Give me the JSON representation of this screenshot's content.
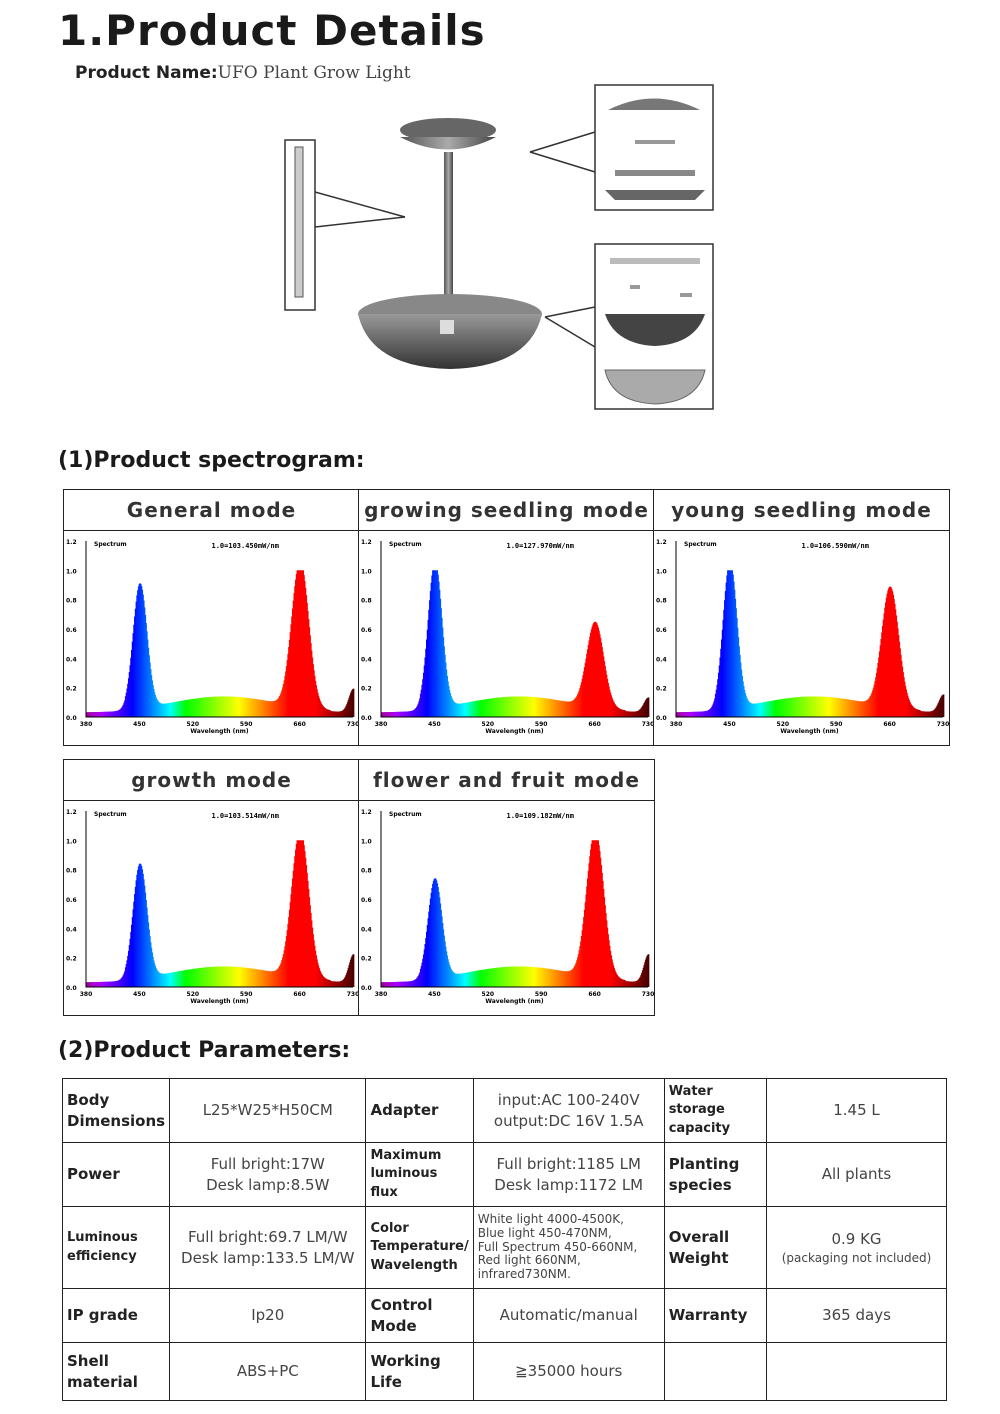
{
  "header": {
    "title": "1.Product Details",
    "product_name_label": "Product Name:",
    "product_name_value": "UFO  Plant Grow Light"
  },
  "spectrogram": {
    "heading": "(1)Product spectrogram:",
    "panels": [
      {
        "title": "General mode",
        "peak_label": "1.0=103.450mW/nm",
        "blue": 0.85,
        "red": 1.0,
        "ir": 0.16
      },
      {
        "title": "growing seedling mode",
        "peak_label": "1.0=127.970mW/nm",
        "blue": 1.0,
        "red": 0.58,
        "ir": 0.1
      },
      {
        "title": "young seedling mode",
        "peak_label": "1.0=106.590mW/nm",
        "blue": 1.0,
        "red": 0.82,
        "ir": 0.12
      },
      {
        "title": "growth mode",
        "peak_label": "1.0=103.514mW/nm",
        "blue": 0.78,
        "red": 1.0,
        "ir": 0.19
      },
      {
        "title": "flower and fruit mode",
        "peak_label": "1.0=109.182mW/nm",
        "blue": 0.68,
        "red": 1.0,
        "ir": 0.19
      }
    ],
    "axis": {
      "y_ticks": [
        "1.2",
        "1.0",
        "0.8",
        "0.6",
        "0.4",
        "0.2",
        "0.0"
      ],
      "x_ticks": [
        "380",
        "450",
        "520",
        "590",
        "660",
        "730"
      ],
      "xlabel": "Wavelength (nm)",
      "ylabel": "Spectrum"
    }
  },
  "parameters": {
    "heading": "(2)Product Parameters:",
    "rows": [
      [
        {
          "l": "Body Dimensions",
          "v": [
            "L25*W25*H50CM"
          ]
        },
        {
          "l": "Adapter",
          "v": [
            "input:AC 100-240V",
            "output:DC 16V 1.5A"
          ]
        },
        {
          "l": "Water storage capacity",
          "v": [
            "1.45 L"
          ]
        }
      ],
      [
        {
          "l": "Power",
          "v": [
            "Full bright:17W",
            "Desk lamp:8.5W"
          ]
        },
        {
          "l": "Maximum luminous flux",
          "v": [
            "Full bright:1185 LM",
            "Desk lamp:1172 LM"
          ]
        },
        {
          "l": "Planting species",
          "v": [
            "All plants"
          ]
        }
      ],
      [
        {
          "l": "Luminous efficiency",
          "v": [
            "Full bright:69.7 LM/W",
            "Desk lamp:133.5 LM/W"
          ]
        },
        {
          "l": "Color Temperature/ Wavelength",
          "v": [
            "White light 4000-4500K,",
            "Blue light 450-470NM,",
            "Full Spectrum 450-660NM,",
            "Red light 660NM,",
            "infrared730NM."
          ]
        },
        {
          "l": "Overall Weight",
          "v": [
            "0.9 KG",
            "(packaging not included)"
          ]
        }
      ],
      [
        {
          "l": "IP grade",
          "v": [
            "Ip20"
          ]
        },
        {
          "l": "Control Mode",
          "v": [
            "Automatic/manual"
          ]
        },
        {
          "l": "Warranty",
          "v": [
            "365  days"
          ]
        }
      ],
      [
        {
          "l": "Shell material",
          "v": [
            "ABS+PC"
          ]
        },
        {
          "l": "Working Life",
          "v": [
            "≧35000 hours"
          ]
        },
        {
          "l": "",
          "v": [
            ""
          ]
        }
      ]
    ]
  }
}
